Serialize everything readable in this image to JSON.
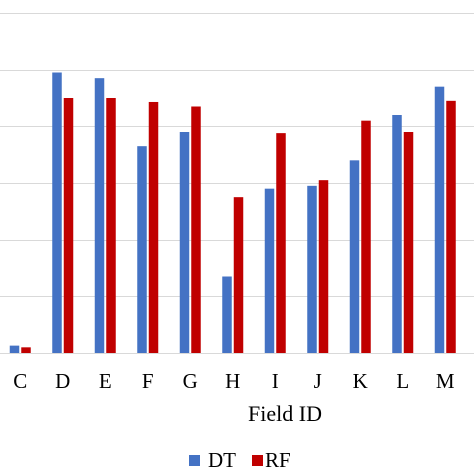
{
  "chart_data": {
    "type": "bar",
    "categories": [
      "C",
      "D",
      "E",
      "F",
      "G",
      "H",
      "I",
      "J",
      "K",
      "L",
      "M"
    ],
    "series": [
      {
        "name": "DT",
        "color": "#4472C4",
        "values": [
          1.3,
          49.5,
          48.5,
          36.5,
          39.0,
          13.5,
          29.0,
          29.5,
          34.0,
          42.0,
          47.0
        ]
      },
      {
        "name": "RF",
        "color": "#C00000",
        "values": [
          1.0,
          45.0,
          45.0,
          44.3,
          43.5,
          27.5,
          38.8,
          30.5,
          41.0,
          39.0,
          44.5
        ]
      }
    ],
    "title": "",
    "xlabel": "Field ID",
    "ylabel": "",
    "ylim": [
      0,
      60
    ],
    "y_gridlines": [
      0,
      10,
      20,
      30,
      40,
      50,
      60
    ],
    "y_tick_labels_visible": false,
    "grid": true,
    "legend_position": "bottom"
  }
}
